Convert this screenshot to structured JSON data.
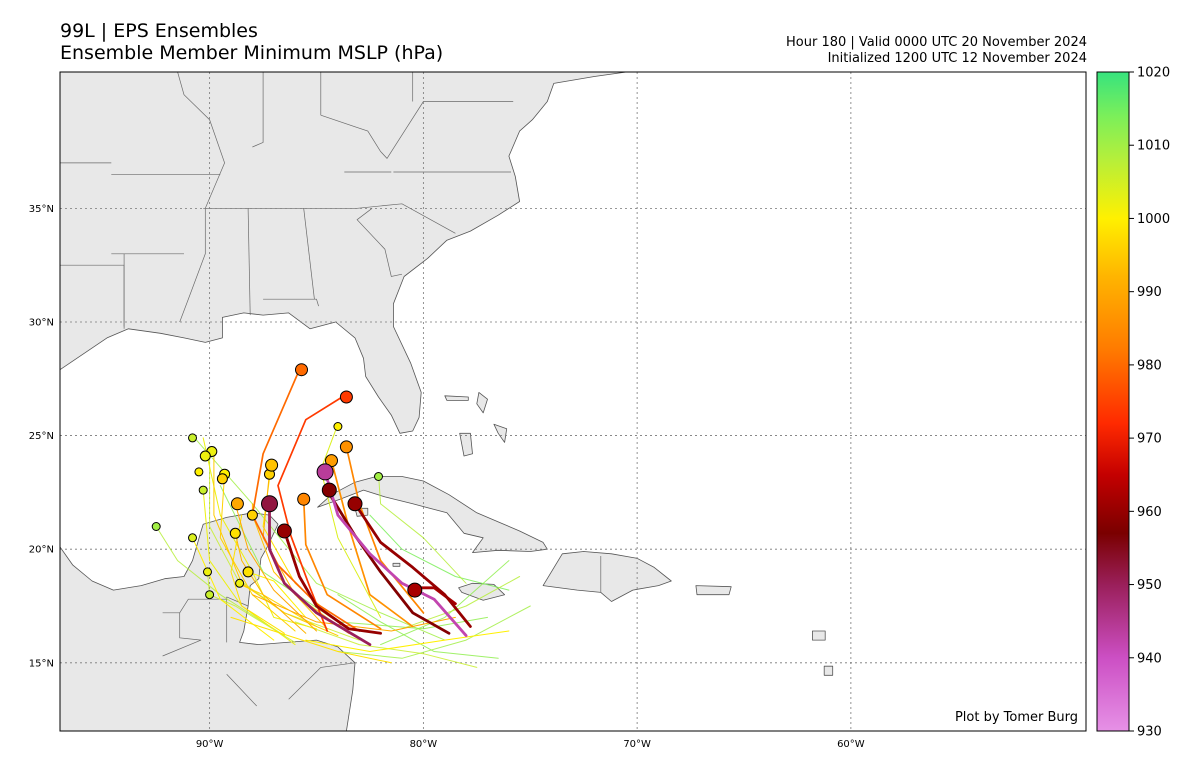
{
  "header": {
    "title_line1": "99L | EPS Ensembles",
    "title_line2": "Ensemble Member Minimum MSLP (hPa)",
    "valid_line": "Hour 180 | Valid 0000 UTC 20 November 2024",
    "init_line": "Initialized 1200 UTC 12 November 2024"
  },
  "credit": "Plot by Tomer Burg",
  "map": {
    "lon_range": [
      -97,
      -49
    ],
    "lat_range": [
      12,
      41
    ],
    "lon_ticks": [
      {
        "lon": -90,
        "label": "90°W"
      },
      {
        "lon": -80,
        "label": "80°W"
      },
      {
        "lon": -70,
        "label": "70°W"
      },
      {
        "lon": -60,
        "label": "60°W"
      }
    ],
    "lat_ticks": [
      {
        "lat": 15,
        "label": "15°N"
      },
      {
        "lat": 20,
        "label": "20°N"
      },
      {
        "lat": 25,
        "label": "25°N"
      },
      {
        "lat": 30,
        "label": "30°N"
      },
      {
        "lat": 35,
        "label": "35°N"
      }
    ],
    "land_color": "#e8e8e8",
    "ocean_color": "#ffffff"
  },
  "colorbar": {
    "min": 930,
    "max": 1020,
    "ticks": [
      "1020",
      "1010",
      "1000",
      "990",
      "980",
      "970",
      "960",
      "950",
      "940",
      "930"
    ],
    "stops": [
      {
        "v": 930,
        "c": "#e691e6"
      },
      {
        "v": 940,
        "c": "#cc4fc4"
      },
      {
        "v": 950,
        "c": "#9a1f5a"
      },
      {
        "v": 957,
        "c": "#7a0000"
      },
      {
        "v": 965,
        "c": "#c40000"
      },
      {
        "v": 972,
        "c": "#ff2a00"
      },
      {
        "v": 982,
        "c": "#ff7a00"
      },
      {
        "v": 992,
        "c": "#ffb400"
      },
      {
        "v": 1000,
        "c": "#fff000"
      },
      {
        "v": 1008,
        "c": "#b6ef3a"
      },
      {
        "v": 1014,
        "c": "#7bef5a"
      },
      {
        "v": 1020,
        "c": "#37e37e"
      }
    ]
  },
  "chart_data": {
    "type": "scatter",
    "variable": "Ensemble Member Minimum MSLP (hPa)",
    "tracks": [
      {
        "mslp": 960,
        "points": [
          [
            -82.0,
            16.3
          ],
          [
            -83.5,
            16.5
          ],
          [
            -85.0,
            17.5
          ],
          [
            -85.8,
            18.8
          ],
          [
            -86.5,
            20.8
          ]
        ]
      },
      {
        "mslp": 958,
        "points": [
          [
            -78.8,
            16.3
          ],
          [
            -80.5,
            17.2
          ],
          [
            -82.0,
            19.0
          ],
          [
            -83.2,
            20.6
          ],
          [
            -84.5,
            22.6
          ]
        ]
      },
      {
        "mslp": 960,
        "points": [
          [
            -77.8,
            16.6
          ],
          [
            -79.0,
            18.0
          ],
          [
            -80.5,
            19.2
          ],
          [
            -82.0,
            20.3
          ],
          [
            -83.2,
            22.0
          ]
        ]
      },
      {
        "mslp": 942,
        "points": [
          [
            -78.0,
            16.2
          ],
          [
            -79.5,
            17.8
          ],
          [
            -81.0,
            18.5
          ],
          [
            -82.5,
            19.8
          ],
          [
            -84.0,
            21.5
          ],
          [
            -84.6,
            23.4
          ]
        ]
      },
      {
        "mslp": 950,
        "points": [
          [
            -82.5,
            15.8
          ],
          [
            -85.0,
            17.2
          ],
          [
            -86.5,
            18.5
          ],
          [
            -87.2,
            20.0
          ],
          [
            -87.2,
            22.0
          ]
        ]
      },
      {
        "mslp": 962,
        "points": [
          [
            -78.5,
            17.6
          ],
          [
            -79.5,
            18.3
          ],
          [
            -80.4,
            18.3
          ]
        ]
      },
      {
        "mslp": 974,
        "points": [
          [
            -84.5,
            16.4
          ],
          [
            -85.3,
            18.3
          ],
          [
            -86.2,
            20.6
          ],
          [
            -86.8,
            22.8
          ],
          [
            -85.5,
            25.7
          ],
          [
            -83.8,
            26.7
          ]
        ]
      },
      {
        "mslp": 980,
        "points": [
          [
            -83.0,
            16.4
          ],
          [
            -85.0,
            17.6
          ],
          [
            -86.8,
            19.3
          ],
          [
            -88.0,
            21.5
          ],
          [
            -87.5,
            24.2
          ],
          [
            -85.8,
            27.9
          ]
        ]
      },
      {
        "mslp": 984,
        "points": [
          [
            -82.0,
            16.5
          ],
          [
            -84.5,
            18.0
          ],
          [
            -85.5,
            20.2
          ],
          [
            -85.6,
            22.2
          ]
        ]
      },
      {
        "mslp": 986,
        "points": [
          [
            -80.5,
            16.6
          ],
          [
            -82.5,
            18.0
          ],
          [
            -83.5,
            21.0
          ],
          [
            -84.3,
            23.9
          ]
        ]
      },
      {
        "mslp": 984,
        "points": [
          [
            -80.0,
            17.2
          ],
          [
            -82.0,
            19.5
          ],
          [
            -83.0,
            22.0
          ],
          [
            -83.6,
            24.5
          ]
        ]
      },
      {
        "mslp": 992,
        "points": [
          [
            -83.5,
            16.3
          ],
          [
            -86.0,
            18.0
          ],
          [
            -87.5,
            20.5
          ],
          [
            -87.2,
            23.4
          ]
        ]
      },
      {
        "mslp": 990,
        "points": [
          [
            -85.0,
            16.4
          ],
          [
            -87.0,
            18.2
          ],
          [
            -88.2,
            20.0
          ],
          [
            -88.8,
            22.0
          ]
        ]
      },
      {
        "mslp": 992,
        "points": [
          [
            -85.5,
            16.3
          ],
          [
            -87.5,
            18.0
          ],
          [
            -88.5,
            19.5
          ],
          [
            -88.8,
            20.7
          ]
        ]
      },
      {
        "mslp": 995,
        "points": [
          [
            -84.0,
            16.2
          ],
          [
            -86.5,
            17.2
          ],
          [
            -88.5,
            18.5
          ],
          [
            -89.8,
            21.5
          ],
          [
            -89.8,
            24.3
          ]
        ]
      },
      {
        "mslp": 996,
        "points": [
          [
            -86.0,
            16.4
          ],
          [
            -88.0,
            18.0
          ],
          [
            -89.5,
            20.5
          ],
          [
            -89.3,
            23.3
          ]
        ]
      },
      {
        "mslp": 998,
        "points": [
          [
            -86.5,
            16.3
          ],
          [
            -88.5,
            17.5
          ],
          [
            -89.0,
            19.0
          ],
          [
            -88.5,
            21.5
          ]
        ]
      },
      {
        "mslp": 996,
        "points": [
          [
            -85.0,
            16.6
          ],
          [
            -87.5,
            18.0
          ],
          [
            -88.7,
            18.5
          ]
        ]
      },
      {
        "mslp": 998,
        "points": [
          [
            -84.0,
            16.8
          ],
          [
            -86.0,
            18.5
          ],
          [
            -87.5,
            21.0
          ],
          [
            -87.1,
            23.8
          ]
        ]
      },
      {
        "mslp": 994,
        "points": [
          [
            -84.5,
            16.5
          ],
          [
            -87.0,
            19.0
          ],
          [
            -88.0,
            21.5
          ],
          [
            -88.0,
            22.0
          ]
        ]
      },
      {
        "mslp": 1000,
        "points": [
          [
            -87.0,
            16.0
          ],
          [
            -89.5,
            17.8
          ],
          [
            -90.8,
            20.5
          ]
        ]
      },
      {
        "mslp": 1002,
        "points": [
          [
            -86.0,
            15.8
          ],
          [
            -88.5,
            17.5
          ],
          [
            -90.0,
            19.5
          ],
          [
            -90.3,
            22.6
          ]
        ]
      },
      {
        "mslp": 1002,
        "points": [
          [
            -85.0,
            16.5
          ],
          [
            -87.0,
            17.0
          ],
          [
            -88.0,
            19.0
          ],
          [
            -89.5,
            21.5
          ],
          [
            -90.3,
            24.9
          ]
        ]
      },
      {
        "mslp": 1000,
        "points": [
          [
            -85.5,
            17.0
          ],
          [
            -87.0,
            18.6
          ],
          [
            -88.2,
            19.0
          ]
        ]
      },
      {
        "mslp": 1006,
        "points": [
          [
            -83.0,
            16.0
          ],
          [
            -86.5,
            17.2
          ],
          [
            -88.7,
            18.7
          ],
          [
            -90.0,
            21.0
          ],
          [
            -90.0,
            24.2
          ]
        ]
      },
      {
        "mslp": 1006,
        "points": [
          [
            -86.0,
            15.9
          ],
          [
            -88.8,
            17.5
          ],
          [
            -90.0,
            18.0
          ],
          [
            -90.1,
            19.0
          ]
        ]
      },
      {
        "mslp": 1008,
        "points": [
          [
            -86.5,
            16.2
          ],
          [
            -89.5,
            18.0
          ],
          [
            -91.5,
            19.5
          ],
          [
            -92.5,
            21.0
          ]
        ]
      },
      {
        "mslp": 1004,
        "points": [
          [
            -82.0,
            17.0
          ],
          [
            -84.0,
            20.5
          ],
          [
            -84.8,
            23.5
          ],
          [
            -84.0,
            25.5
          ]
        ]
      },
      {
        "mslp": 1008,
        "points": [
          [
            -78.0,
            18.5
          ],
          [
            -80.0,
            20.5
          ],
          [
            -82.0,
            22.0
          ],
          [
            -82.1,
            23.3
          ]
        ]
      },
      {
        "mslp": 1010,
        "points": [
          [
            -79.0,
            16.0
          ],
          [
            -82.0,
            17.2
          ],
          [
            -85.0,
            18.5
          ],
          [
            -88.0,
            22.0
          ],
          [
            -90.8,
            25.0
          ]
        ]
      },
      {
        "mslp": 1012,
        "points": [
          [
            -77.0,
            17.0
          ],
          [
            -80.0,
            16.5
          ],
          [
            -84.0,
            16.8
          ],
          [
            -87.5,
            19.0
          ],
          [
            -89.5,
            22.8
          ]
        ]
      },
      {
        "mslp": 1000,
        "points": [
          [
            -76.0,
            16.4
          ],
          [
            -79.0,
            16.0
          ],
          [
            -82.5,
            15.5
          ],
          [
            -85.5,
            16.0
          ]
        ]
      },
      {
        "mslp": 1010,
        "points": [
          [
            -75.0,
            17.5
          ],
          [
            -78.0,
            16.0
          ],
          [
            -81.0,
            15.2
          ],
          [
            -84.0,
            15.5
          ]
        ]
      },
      {
        "mslp": 1012,
        "points": [
          [
            -76.5,
            15.2
          ],
          [
            -79.5,
            15.5
          ],
          [
            -82.0,
            16.8
          ],
          [
            -84.0,
            18.0
          ]
        ]
      },
      {
        "mslp": 998,
        "points": [
          [
            -81.5,
            15.0
          ],
          [
            -84.0,
            15.5
          ],
          [
            -87.0,
            16.4
          ],
          [
            -89.0,
            17.0
          ]
        ]
      },
      {
        "mslp": 1008,
        "points": [
          [
            -75.5,
            18.8
          ],
          [
            -78.0,
            17.5
          ],
          [
            -81.0,
            16.5
          ]
        ]
      },
      {
        "mslp": 1012,
        "points": [
          [
            -76.0,
            19.5
          ],
          [
            -79.0,
            17.0
          ],
          [
            -82.0,
            15.8
          ]
        ]
      },
      {
        "mslp": 1006,
        "points": [
          [
            -77.5,
            14.8
          ],
          [
            -80.0,
            15.4
          ],
          [
            -83.0,
            15.8
          ],
          [
            -86.0,
            16.8
          ]
        ]
      },
      {
        "mslp": 990,
        "points": [
          [
            -78.5,
            17.0
          ],
          [
            -81.5,
            16.4
          ],
          [
            -85.0,
            16.8
          ],
          [
            -88.0,
            18.0
          ]
        ]
      },
      {
        "mslp": 1014,
        "points": [
          [
            -76.0,
            18.2
          ],
          [
            -78.5,
            18.8
          ],
          [
            -81.0,
            20.0
          ],
          [
            -82.5,
            21.5
          ]
        ]
      }
    ],
    "end_points": [
      {
        "lon": -85.7,
        "lat": 27.9,
        "mslp": 980,
        "size": 6
      },
      {
        "lon": -83.6,
        "lat": 26.7,
        "mslp": 974,
        "size": 6
      },
      {
        "lon": -84.0,
        "lat": 25.4,
        "mslp": 1000,
        "size": 4
      },
      {
        "lon": -83.6,
        "lat": 24.5,
        "mslp": 986,
        "size": 6
      },
      {
        "lon": -84.3,
        "lat": 23.9,
        "mslp": 988,
        "size": 6
      },
      {
        "lon": -84.6,
        "lat": 23.4,
        "mslp": 944,
        "size": 8
      },
      {
        "lon": -84.4,
        "lat": 22.6,
        "mslp": 958,
        "size": 7
      },
      {
        "lon": -83.2,
        "lat": 22.0,
        "mslp": 960,
        "size": 7
      },
      {
        "lon": -82.1,
        "lat": 23.2,
        "mslp": 1010,
        "size": 4
      },
      {
        "lon": -85.6,
        "lat": 22.2,
        "mslp": 984,
        "size": 6
      },
      {
        "lon": -87.2,
        "lat": 22.0,
        "mslp": 952,
        "size": 8
      },
      {
        "lon": -86.5,
        "lat": 20.8,
        "mslp": 960,
        "size": 7
      },
      {
        "lon": -80.4,
        "lat": 18.2,
        "mslp": 962,
        "size": 7
      },
      {
        "lon": -87.1,
        "lat": 23.7,
        "mslp": 994,
        "size": 6
      },
      {
        "lon": -87.2,
        "lat": 23.3,
        "mslp": 996,
        "size": 5
      },
      {
        "lon": -88.0,
        "lat": 21.5,
        "mslp": 996,
        "size": 5
      },
      {
        "lon": -88.7,
        "lat": 22.0,
        "mslp": 990,
        "size": 6
      },
      {
        "lon": -88.8,
        "lat": 20.7,
        "mslp": 998,
        "size": 5
      },
      {
        "lon": -88.2,
        "lat": 19.0,
        "mslp": 998,
        "size": 5
      },
      {
        "lon": -88.6,
        "lat": 18.5,
        "mslp": 1002,
        "size": 4
      },
      {
        "lon": -90.8,
        "lat": 20.5,
        "mslp": 1004,
        "size": 4
      },
      {
        "lon": -90.8,
        "lat": 24.9,
        "mslp": 1006,
        "size": 4
      },
      {
        "lon": -89.9,
        "lat": 24.3,
        "mslp": 1002,
        "size": 5
      },
      {
        "lon": -90.2,
        "lat": 24.1,
        "mslp": 1002,
        "size": 5
      },
      {
        "lon": -90.5,
        "lat": 23.4,
        "mslp": 1000,
        "size": 4
      },
      {
        "lon": -89.3,
        "lat": 23.3,
        "mslp": 1000,
        "size": 5
      },
      {
        "lon": -89.4,
        "lat": 23.1,
        "mslp": 996,
        "size": 5
      },
      {
        "lon": -90.3,
        "lat": 22.6,
        "mslp": 1006,
        "size": 4
      },
      {
        "lon": -92.5,
        "lat": 21.0,
        "mslp": 1010,
        "size": 4
      },
      {
        "lon": -90.1,
        "lat": 19.0,
        "mslp": 1002,
        "size": 4
      },
      {
        "lon": -90.0,
        "lat": 18.0,
        "mslp": 1006,
        "size": 4
      }
    ]
  }
}
